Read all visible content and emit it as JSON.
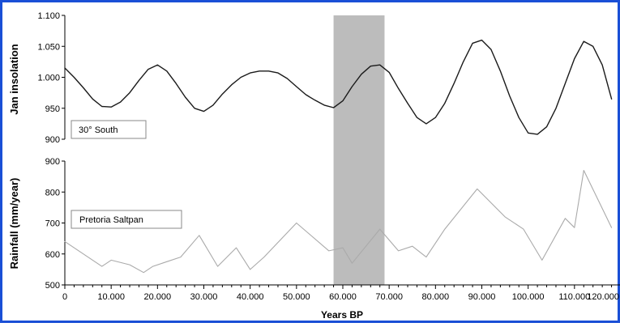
{
  "chart_data": [
    {
      "type": "line",
      "ylabel": "Jan insolation",
      "ylim": [
        900,
        1100
      ],
      "yticks": [
        "900",
        "950",
        "1.000",
        "1.050",
        "1.100"
      ],
      "legend": "30° South",
      "series": [
        {
          "color": "#1a1a1a",
          "x": [
            0,
            2000,
            4000,
            6000,
            8000,
            10000,
            12000,
            14000,
            16000,
            18000,
            20000,
            22000,
            24000,
            26000,
            28000,
            30000,
            32000,
            34000,
            36000,
            38000,
            40000,
            42000,
            44000,
            46000,
            48000,
            50000,
            52000,
            54000,
            56000,
            58000,
            60000,
            62000,
            64000,
            66000,
            68000,
            70000,
            72000,
            74000,
            76000,
            78000,
            80000,
            82000,
            84000,
            86000,
            88000,
            90000,
            92000,
            94000,
            96000,
            98000,
            100000,
            102000,
            104000,
            106000,
            108000,
            110000,
            112000,
            114000,
            116000,
            118000
          ],
          "y": [
            1015,
            1000,
            983,
            965,
            953,
            952,
            960,
            975,
            995,
            1013,
            1020,
            1010,
            990,
            968,
            950,
            945,
            955,
            973,
            988,
            1000,
            1007,
            1010,
            1010,
            1007,
            998,
            985,
            972,
            963,
            955,
            951,
            962,
            985,
            1005,
            1018,
            1020,
            1008,
            982,
            958,
            935,
            925,
            935,
            958,
            990,
            1025,
            1055,
            1060,
            1045,
            1010,
            970,
            935,
            910,
            908,
            920,
            950,
            990,
            1030,
            1058,
            1050,
            1020,
            965
          ]
        }
      ]
    },
    {
      "type": "line",
      "ylabel": "Rainfall (mm/year)",
      "ylim": [
        500,
        900
      ],
      "yticks": [
        "500",
        "600",
        "700",
        "800",
        "900"
      ],
      "legend": "Pretoria Saltpan",
      "series": [
        {
          "color": "#aaaaaa",
          "x": [
            0,
            8000,
            10000,
            14000,
            17000,
            19000,
            22000,
            25000,
            29000,
            33000,
            37000,
            40000,
            43000,
            50000,
            57000,
            60000,
            62000,
            68000,
            72000,
            75000,
            78000,
            82000,
            89000,
            95000,
            99000,
            103000,
            108000,
            110000,
            112000,
            118000
          ],
          "y": [
            640,
            560,
            580,
            565,
            540,
            560,
            575,
            590,
            660,
            560,
            620,
            550,
            590,
            700,
            610,
            620,
            570,
            680,
            610,
            625,
            590,
            680,
            810,
            720,
            680,
            580,
            715,
            685,
            870,
            685
          ]
        }
      ]
    }
  ],
  "x_axis": {
    "xlabel": "Years BP",
    "xlim": [
      0,
      120000
    ],
    "xticks": [
      "0",
      "10.000",
      "20.000",
      "30.000",
      "40.000",
      "50.000",
      "60.000",
      "70.000",
      "80.000",
      "90.000",
      "100.000",
      "110.000",
      "120.000"
    ]
  },
  "highlight": {
    "x_start": 58000,
    "x_end": 69000,
    "color": "#bcbcbc"
  },
  "frame_color": "#1a4fd6"
}
